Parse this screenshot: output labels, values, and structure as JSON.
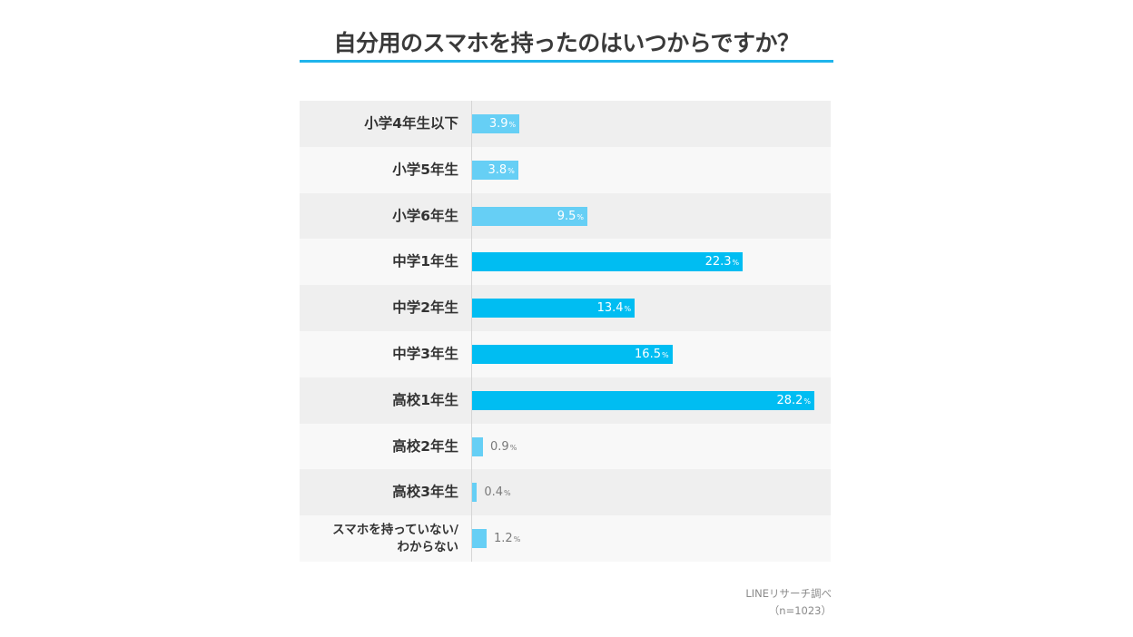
{
  "chart_data": {
    "type": "bar",
    "orientation": "horizontal",
    "title": "自分用のスマホを持ったのはいつからですか？",
    "unit": "%",
    "categories": [
      "小学4年生以下",
      "小学5年生",
      "小学6年生",
      "中学1年生",
      "中学2年生",
      "中学3年生",
      "高校1年生",
      "高校2年生",
      "高校3年生",
      "スマホを持っていない/\nわからない"
    ],
    "values": [
      3.9,
      3.8,
      9.5,
      22.3,
      13.4,
      16.5,
      28.2,
      0.9,
      0.4,
      1.2
    ],
    "value_labels": [
      "3.9",
      "3.8",
      "9.5",
      "22.3",
      "13.4",
      "16.5",
      "28.2",
      "0.9",
      "0.4",
      "1.2"
    ],
    "highlight": [
      false,
      false,
      false,
      true,
      true,
      true,
      true,
      false,
      false,
      false
    ],
    "xlim": [
      0,
      28.2
    ],
    "grid": false,
    "legend": "none",
    "colors": {
      "bar": "#66cff5",
      "bar_highlight": "#00bdf2",
      "title_rule": "#1fb4ec",
      "row_odd": "#efefef",
      "row_even": "#f8f8f8"
    }
  },
  "percent_sign": "%",
  "source": {
    "line1": "LINEリサーチ調べ",
    "line2": "（n=1023）"
  }
}
